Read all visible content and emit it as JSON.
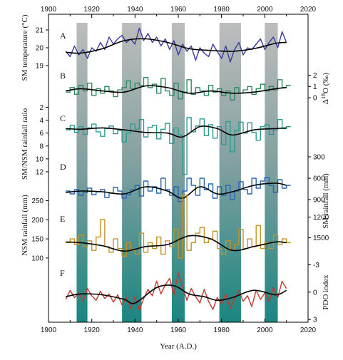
{
  "chart_data": {
    "type": "line",
    "title": "",
    "xlabel": "Year (A.D.)",
    "xlim": [
      1900,
      2020
    ],
    "x_ticks": [
      1900,
      1920,
      1940,
      1960,
      1980,
      2000,
      2020
    ],
    "x_tick_labels": [
      "1900",
      "1920",
      "1940",
      "1960",
      "1980",
      "2000",
      "2020"
    ],
    "shaded_periods": [
      [
        1913,
        1918
      ],
      [
        1934,
        1943
      ],
      [
        1957,
        1963
      ],
      [
        1979,
        1989
      ],
      [
        2000,
        2006
      ]
    ],
    "panels": [
      {
        "id": "A",
        "label": "A",
        "ylabel": "SM temperature (°C)",
        "axis_side": "left",
        "inverted": false,
        "ylim": [
          18.6,
          21.4
        ],
        "tick_values": [
          19,
          20,
          21
        ],
        "tick_labels": [
          "19",
          "20",
          "21"
        ],
        "style": "line",
        "color": "#3b3b9a",
        "smooth": {
          "x": [
            1908,
            1915,
            1925,
            1935,
            1945,
            1955,
            1965,
            1975,
            1985,
            1995,
            2005,
            2010
          ],
          "y": [
            19.75,
            19.7,
            19.95,
            20.4,
            20.5,
            20.3,
            19.95,
            19.85,
            19.8,
            19.95,
            20.25,
            20.3
          ]
        },
        "series": {
          "x": [
            1908,
            1910,
            1912,
            1914,
            1916,
            1918,
            1920,
            1922,
            1924,
            1926,
            1928,
            1930,
            1932,
            1934,
            1936,
            1938,
            1940,
            1942,
            1944,
            1946,
            1948,
            1950,
            1952,
            1954,
            1956,
            1958,
            1960,
            1962,
            1964,
            1966,
            1968,
            1970,
            1972,
            1974,
            1976,
            1978,
            1980,
            1982,
            1984,
            1986,
            1988,
            1990,
            1992,
            1994,
            1996,
            1998,
            2000,
            2002,
            2004,
            2006,
            2008,
            2010
          ],
          "y": [
            19.8,
            19.5,
            20.1,
            19.6,
            19.9,
            19.4,
            20.0,
            19.8,
            20.3,
            19.9,
            20.6,
            20.2,
            20.5,
            20.7,
            20.3,
            20.5,
            20.2,
            21.1,
            20.4,
            20.8,
            20.3,
            20.6,
            20.1,
            20.5,
            19.9,
            20.4,
            19.6,
            20.2,
            19.8,
            20.1,
            19.3,
            20.0,
            19.7,
            19.5,
            20.2,
            19.8,
            19.4,
            20.1,
            19.2,
            19.9,
            20.3,
            19.6,
            20.0,
            19.9,
            20.2,
            20.5,
            19.9,
            20.3,
            20.6,
            20.0,
            20.9,
            20.3
          ]
        }
      },
      {
        "id": "B",
        "label": "B",
        "ylabel": "Δ18O (‰)",
        "axis_side": "right",
        "inverted": false,
        "ylim": [
          -0.5,
          2.6
        ],
        "tick_values": [
          0,
          1,
          2
        ],
        "tick_labels": [
          "0",
          "1",
          "2"
        ],
        "style": "step",
        "color": "#2f8a62",
        "smooth": {
          "x": [
            1908,
            1915,
            1925,
            1935,
            1945,
            1955,
            1965,
            1975,
            1985,
            1995,
            2005,
            2010
          ],
          "y": [
            0.6,
            0.8,
            0.6,
            0.5,
            1.05,
            0.9,
            0.4,
            0.6,
            0.4,
            0.5,
            0.8,
            0.9
          ]
        },
        "series": {
          "x": [
            1908,
            1910,
            1912,
            1914,
            1916,
            1918,
            1920,
            1922,
            1924,
            1926,
            1928,
            1930,
            1932,
            1934,
            1936,
            1938,
            1940,
            1942,
            1944,
            1946,
            1948,
            1950,
            1952,
            1954,
            1956,
            1958,
            1960,
            1962,
            1964,
            1966,
            1968,
            1970,
            1972,
            1974,
            1976,
            1978,
            1980,
            1982,
            1984,
            1986,
            1988,
            1990,
            1992,
            1994,
            1996,
            1998,
            2000,
            2002,
            2004,
            2006,
            2008,
            2010
          ],
          "y": [
            0.5,
            0.9,
            0.3,
            1.1,
            0.6,
            1.3,
            0.2,
            0.8,
            0.4,
            1.0,
            0.6,
            0.1,
            0.7,
            0.9,
            1.5,
            0.8,
            1.3,
            1.1,
            1.8,
            0.9,
            1.2,
            0.4,
            1.7,
            0.6,
            0.2,
            1.3,
            -0.1,
            0.5,
            1.6,
            0.3,
            0.9,
            0.6,
            0.2,
            1.1,
            0.5,
            0.8,
            0.2,
            0.6,
            -0.2,
            0.9,
            0.4,
            0.7,
            1.0,
            0.3,
            0.8,
            1.2,
            0.6,
            1.0,
            0.7,
            1.6,
            0.9,
            1.1
          ]
        }
      },
      {
        "id": "C",
        "label": "C",
        "ylabel": "SM/NSM rainfall ratio",
        "axis_side": "left",
        "inverted": true,
        "ylim": [
          1.5,
          13.0
        ],
        "tick_values": [
          2,
          4,
          6,
          8,
          10,
          12
        ],
        "tick_labels": [
          "2",
          "4",
          "6",
          "8",
          "10",
          "12"
        ],
        "style": "step",
        "color": "#2b9b92",
        "smooth": {
          "x": [
            1908,
            1915,
            1925,
            1935,
            1945,
            1955,
            1962,
            1970,
            1978,
            1985,
            1995,
            2005,
            2010
          ],
          "y": [
            5.3,
            5.4,
            5.2,
            5.5,
            5.9,
            6.0,
            6.6,
            5.0,
            5.3,
            6.3,
            5.5,
            5.3,
            5.2
          ]
        },
        "series": {
          "x": [
            1908,
            1910,
            1912,
            1914,
            1916,
            1918,
            1920,
            1922,
            1924,
            1926,
            1928,
            1930,
            1932,
            1934,
            1936,
            1938,
            1940,
            1942,
            1944,
            1946,
            1948,
            1950,
            1952,
            1954,
            1956,
            1958,
            1960,
            1962,
            1964,
            1966,
            1968,
            1970,
            1972,
            1974,
            1976,
            1978,
            1980,
            1982,
            1984,
            1986,
            1988,
            1990,
            1992,
            1994,
            1996,
            1998,
            2000,
            2002,
            2004,
            2006,
            2008,
            2010
          ],
          "y": [
            5.5,
            4.8,
            5.9,
            5.0,
            6.2,
            5.2,
            4.6,
            5.8,
            6.5,
            5.3,
            4.9,
            6.1,
            5.6,
            7.4,
            6.0,
            4.6,
            5.4,
            3.9,
            6.6,
            5.1,
            4.8,
            6.9,
            5.4,
            4.5,
            7.6,
            5.2,
            6.3,
            12.4,
            3.6,
            5.8,
            4.9,
            3.8,
            6.4,
            4.7,
            6.8,
            5.0,
            7.8,
            4.2,
            8.9,
            5.6,
            4.3,
            6.0,
            4.4,
            5.9,
            7.1,
            5.0,
            4.7,
            6.2,
            5.5,
            3.9,
            5.3,
            5.0
          ]
        }
      },
      {
        "id": "D",
        "label": "D",
        "ylabel": "SM rainfall (mm)",
        "axis_side": "right",
        "inverted": true,
        "ylim": [
          250,
          1150
        ],
        "tick_values": [
          300,
          600,
          900
        ],
        "tick_labels": [
          "300",
          "600",
          "900"
        ],
        "style": "step",
        "color": "#2a67b0",
        "smooth": {
          "x": [
            1908,
            1915,
            1925,
            1935,
            1945,
            1955,
            1962,
            1970,
            1978,
            1985,
            1995,
            2005,
            2010
          ],
          "y": [
            800,
            780,
            790,
            820,
            720,
            780,
            880,
            720,
            820,
            790,
            700,
            670,
            700
          ]
        },
        "series": {
          "x": [
            1908,
            1910,
            1912,
            1914,
            1916,
            1918,
            1920,
            1922,
            1924,
            1926,
            1928,
            1930,
            1932,
            1934,
            1936,
            1938,
            1940,
            1942,
            1944,
            1946,
            1948,
            1950,
            1952,
            1954,
            1956,
            1958,
            1960,
            1962,
            1964,
            1966,
            1968,
            1970,
            1972,
            1974,
            1976,
            1978,
            1980,
            1982,
            1984,
            1986,
            1988,
            1990,
            1992,
            1994,
            1996,
            1998,
            2000,
            2002,
            2004,
            2006,
            2008,
            2010
          ],
          "y": [
            780,
            820,
            760,
            840,
            800,
            740,
            830,
            790,
            760,
            870,
            810,
            730,
            780,
            880,
            830,
            760,
            700,
            850,
            640,
            780,
            720,
            810,
            600,
            760,
            840,
            720,
            930,
            780,
            600,
            700,
            840,
            600,
            760,
            680,
            880,
            720,
            840,
            700,
            900,
            780,
            650,
            760,
            820,
            600,
            740,
            640,
            590,
            700,
            800,
            620,
            740,
            700
          ]
        }
      },
      {
        "id": "E",
        "label": "E",
        "ylabel": "NSM rainfall (mm)",
        "axis_side": "left",
        "inverted": false,
        "ylim": [
          85,
          275
        ],
        "tick_values": [
          100,
          150,
          200,
          250
        ],
        "tick_labels": [
          "100",
          "150",
          "200",
          "250"
        ],
        "style": "step",
        "color": "#c49226",
        "smooth": {
          "x": [
            1908,
            1915,
            1925,
            1935,
            1945,
            1955,
            1965,
            1975,
            1985,
            1995,
            2005,
            2010
          ],
          "y": [
            142,
            140,
            132,
            118,
            130,
            135,
            158,
            150,
            120,
            130,
            142,
            140
          ]
        },
        "series": {
          "x": [
            1908,
            1910,
            1912,
            1914,
            1916,
            1918,
            1920,
            1922,
            1924,
            1926,
            1928,
            1930,
            1932,
            1934,
            1936,
            1938,
            1940,
            1942,
            1944,
            1946,
            1948,
            1950,
            1952,
            1954,
            1956,
            1958,
            1960,
            1962,
            1964,
            1966,
            1968,
            1970,
            1972,
            1974,
            1976,
            1978,
            1980,
            1982,
            1984,
            1986,
            1988,
            1990,
            1992,
            1994,
            1996,
            1998,
            2000,
            2002,
            2004,
            2006,
            2008,
            2010
          ],
          "y": [
            140,
            150,
            135,
            160,
            130,
            145,
            120,
            155,
            200,
            130,
            115,
            150,
            125,
            105,
            140,
            120,
            110,
            165,
            115,
            140,
            125,
            155,
            110,
            145,
            130,
            175,
            100,
            265,
            120,
            140,
            165,
            180,
            140,
            150,
            170,
            125,
            110,
            145,
            120,
            135,
            175,
            125,
            150,
            130,
            185,
            125,
            140,
            125,
            160,
            135,
            150,
            140
          ]
        }
      },
      {
        "id": "PDO",
        "label": "",
        "ylabel": "SM rainfall (mm)",
        "axis_side": "right",
        "inverted": true,
        "ylim": [
          1050,
          1620
        ],
        "tick_values": [
          1200,
          1500
        ],
        "tick_labels": [
          "1200",
          "1500"
        ],
        "style": "axis_only",
        "color": "#000000"
      },
      {
        "id": "F",
        "label": "F",
        "ylabel": "PDO index",
        "axis_side": "right",
        "inverted": true,
        "ylim": [
          -3.5,
          3.3
        ],
        "tick_values": [
          -3,
          0,
          3
        ],
        "tick_labels": [
          "-3",
          "0",
          "3"
        ],
        "style": "line",
        "color": "#c0392b",
        "smooth": {
          "x": [
            1908,
            1915,
            1925,
            1935,
            1940,
            1950,
            1958,
            1965,
            1972,
            1978,
            1985,
            1995,
            2005,
            2010
          ],
          "y": [
            0.5,
            0.2,
            0.3,
            0.8,
            1.2,
            -0.5,
            -0.7,
            0.2,
            0.5,
            0.9,
            0.6,
            -0.2,
            0.3,
            -0.2
          ]
        },
        "series": {
          "x": [
            1908,
            1910,
            1912,
            1914,
            1916,
            1918,
            1920,
            1922,
            1924,
            1926,
            1928,
            1930,
            1932,
            1934,
            1936,
            1938,
            1940,
            1942,
            1944,
            1946,
            1948,
            1950,
            1952,
            1954,
            1956,
            1958,
            1960,
            1962,
            1964,
            1966,
            1968,
            1970,
            1972,
            1974,
            1976,
            1978,
            1980,
            1982,
            1984,
            1986,
            1988,
            1990,
            1992,
            1994,
            1996,
            1998,
            2000,
            2002,
            2004,
            2006,
            2008,
            2010
          ],
          "y": [
            0.8,
            -0.2,
            0.6,
            0.1,
            1.0,
            -0.4,
            0.4,
            0.9,
            -0.1,
            0.7,
            0.2,
            1.1,
            0.3,
            1.4,
            0.6,
            1.8,
            0.5,
            2.0,
            0.7,
            -0.3,
            0.4,
            -1.2,
            0.2,
            -0.8,
            -1.5,
            0.3,
            -2.1,
            -0.6,
            0.9,
            -0.4,
            0.5,
            1.2,
            -0.3,
            1.0,
            1.9,
            0.6,
            1.3,
            0.2,
            1.8,
            0.8,
            -0.2,
            1.0,
            0.4,
            1.6,
            -0.2,
            0.8,
            0.1,
            1.0,
            -0.5,
            0.6,
            -1.2,
            -0.4
          ]
        }
      }
    ]
  }
}
